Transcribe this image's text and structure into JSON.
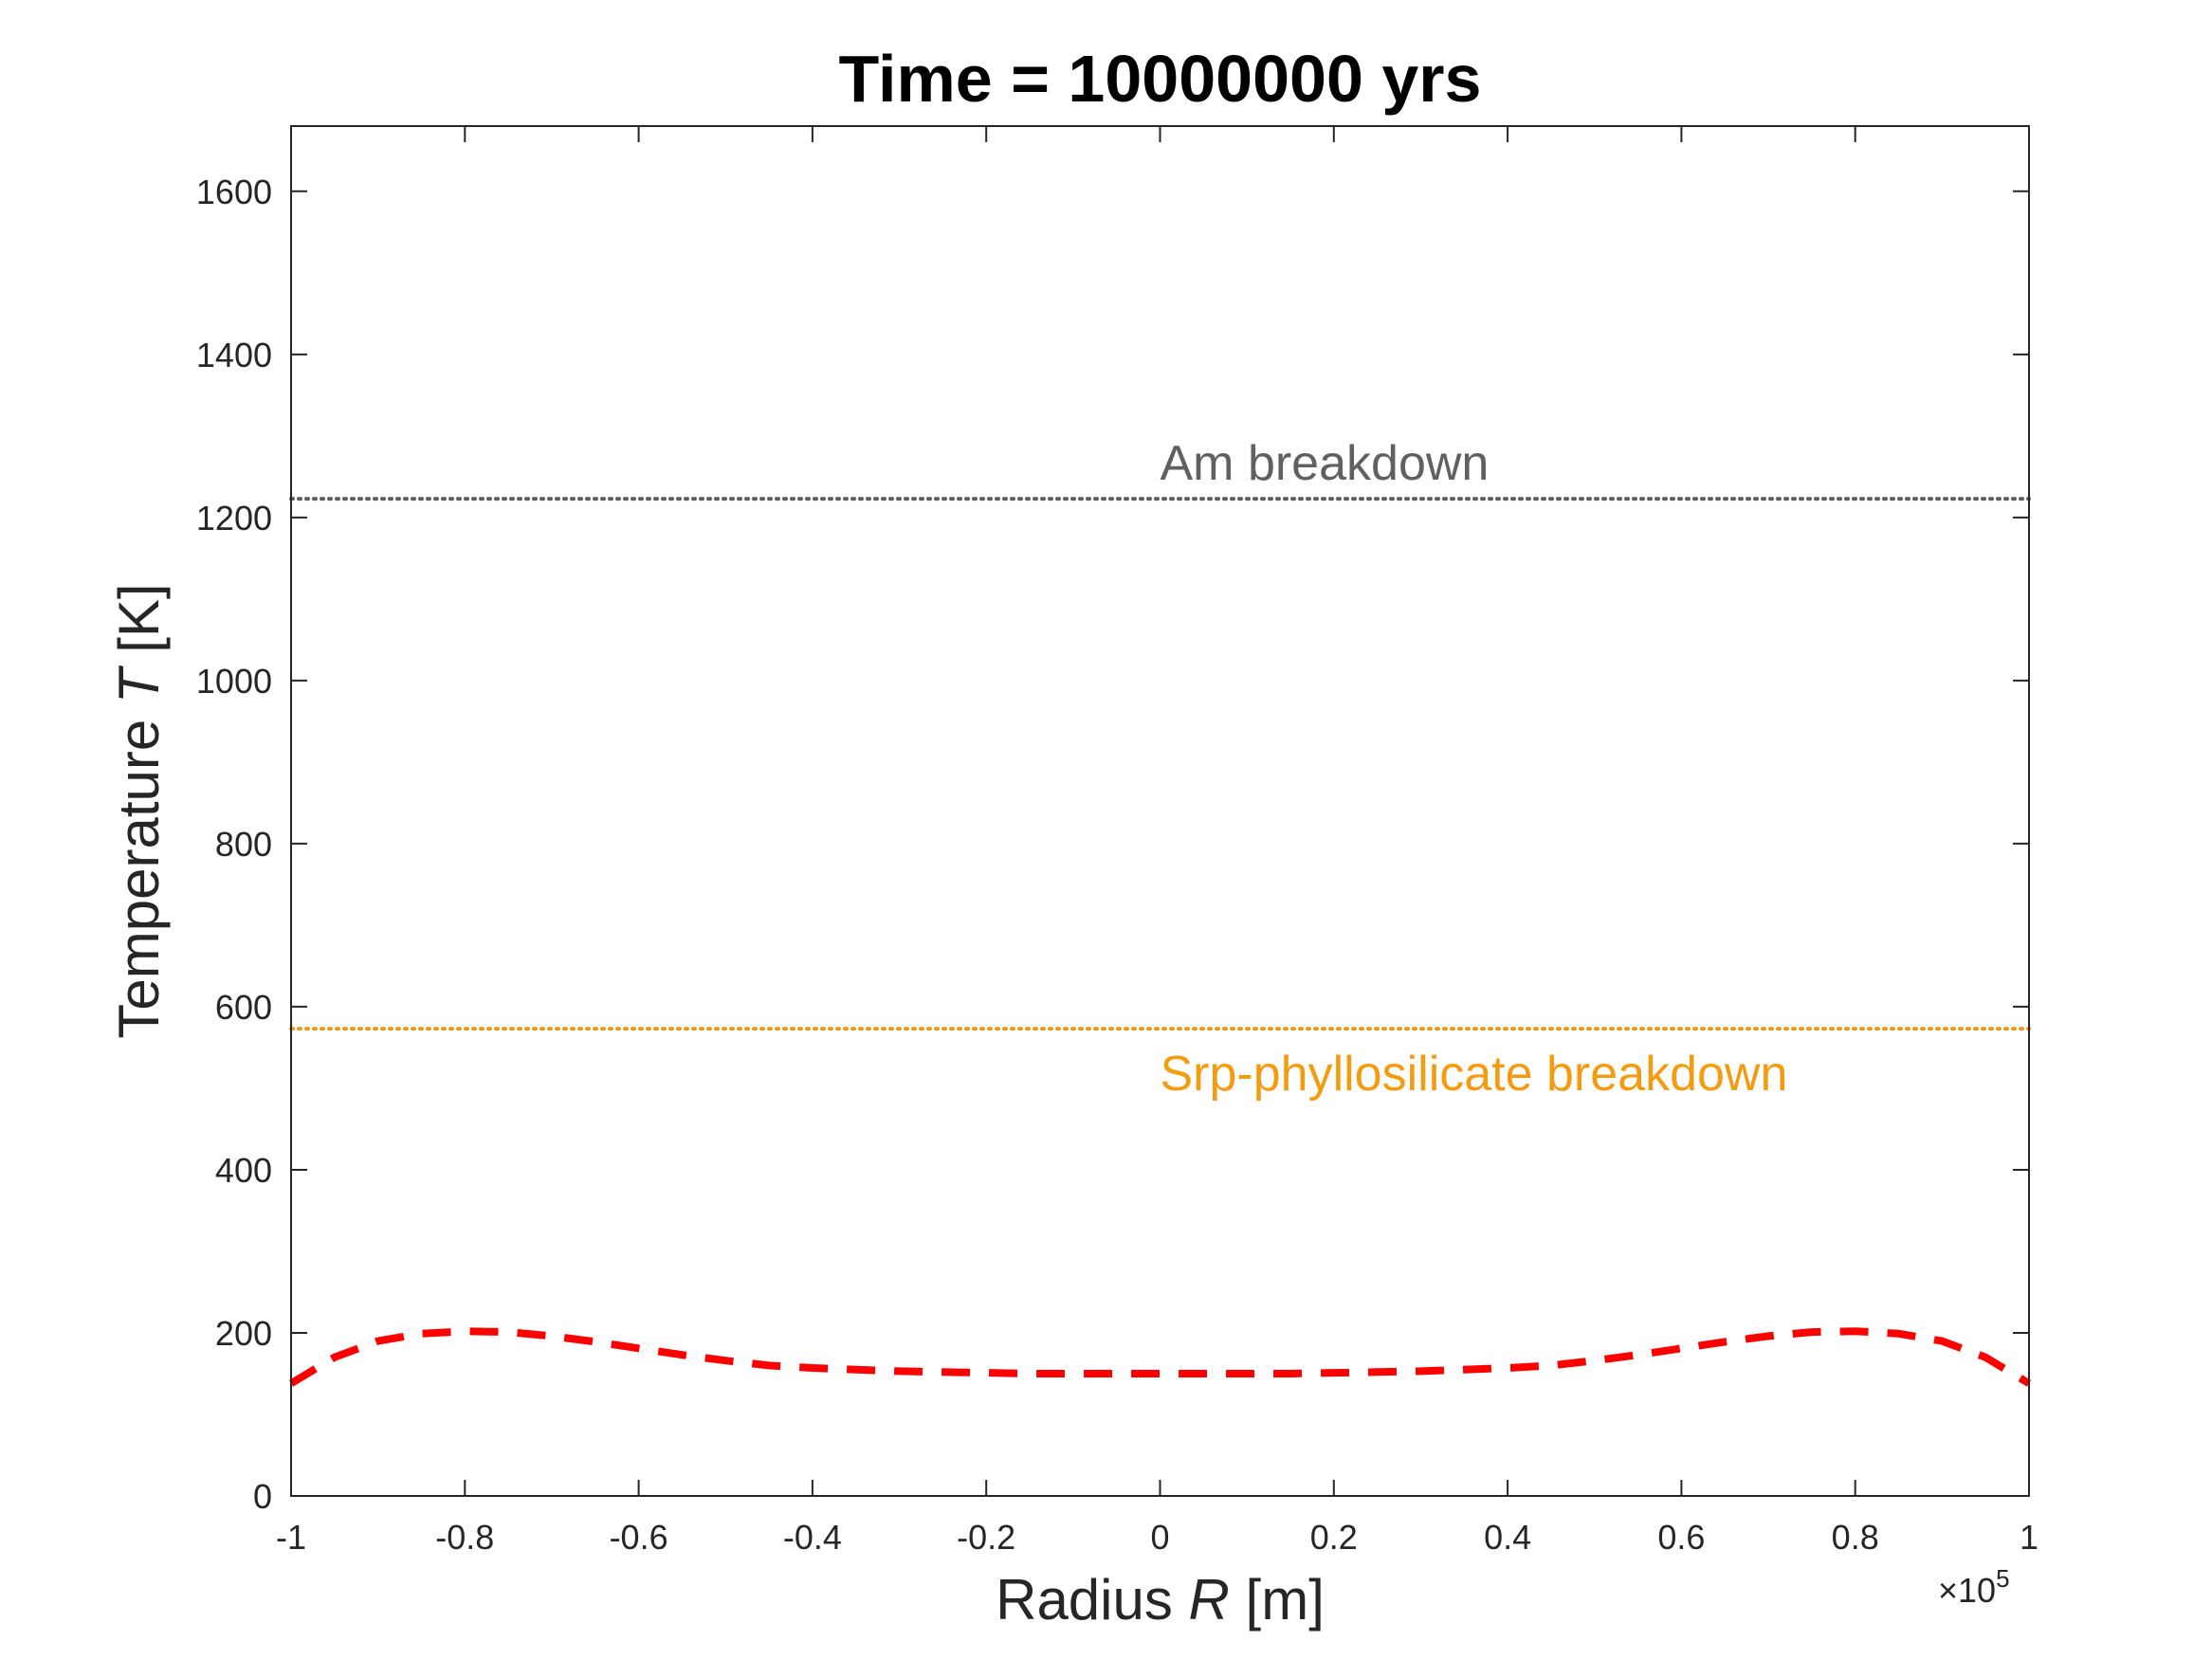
{
  "chart_data": {
    "type": "line",
    "title": "Time = 10000000 yrs",
    "xlabel": {
      "prefix": "Radius",
      "symbol": "R",
      "unit": "[m]"
    },
    "ylabel": {
      "prefix": "Temperature",
      "symbol": "T",
      "unit": "[K]"
    },
    "x_exponent": {
      "base": "×10",
      "power": "5"
    },
    "xlim": [
      -1,
      1
    ],
    "ylim": [
      0,
      1680
    ],
    "xticks": [
      -1,
      -0.8,
      -0.6,
      -0.4,
      -0.2,
      0,
      0.2,
      0.4,
      0.6,
      0.8,
      1
    ],
    "xtick_labels": [
      "-1",
      "-0.8",
      "-0.6",
      "-0.4",
      "-0.2",
      "0",
      "0.2",
      "0.4",
      "0.6",
      "0.8",
      "1"
    ],
    "yticks": [
      0,
      200,
      400,
      600,
      800,
      1000,
      1200,
      1400,
      1600
    ],
    "ytick_labels": [
      "0",
      "200",
      "400",
      "600",
      "800",
      "1000",
      "1200",
      "1400",
      "1600"
    ],
    "grid": false,
    "reference_lines": [
      {
        "label": "Am breakdown",
        "y": 1223,
        "color": "#606060",
        "style": "dotted",
        "label_x": 0.0,
        "label_anchor": "above"
      },
      {
        "label": "Srp-phyllosilicate breakdown",
        "y": 573,
        "color": "#f39c12",
        "style": "dotted",
        "label_x": 0.0,
        "label_anchor": "below"
      }
    ],
    "series": [
      {
        "color": "#ff0000",
        "style": "dashed",
        "x": [
          -1.0,
          -0.95,
          -0.9,
          -0.85,
          -0.8,
          -0.75,
          -0.7,
          -0.65,
          -0.6,
          -0.55,
          -0.5,
          -0.45,
          -0.4,
          -0.35,
          -0.3,
          -0.25,
          -0.2,
          -0.15,
          -0.1,
          -0.05,
          0.0,
          0.05,
          0.1,
          0.15,
          0.2,
          0.25,
          0.3,
          0.35,
          0.4,
          0.45,
          0.5,
          0.55,
          0.6,
          0.65,
          0.7,
          0.75,
          0.8,
          0.85,
          0.9,
          0.95,
          1.0
        ],
        "y": [
          138,
          170,
          190,
          199,
          202,
          201,
          196,
          189,
          181,
          173,
          166,
          160,
          157,
          155,
          153,
          152,
          151,
          150,
          150,
          150,
          150,
          150,
          150,
          150,
          151,
          152,
          153,
          155,
          157,
          160,
          166,
          173,
          181,
          189,
          196,
          201,
          202,
          199,
          190,
          170,
          138
        ]
      }
    ]
  }
}
